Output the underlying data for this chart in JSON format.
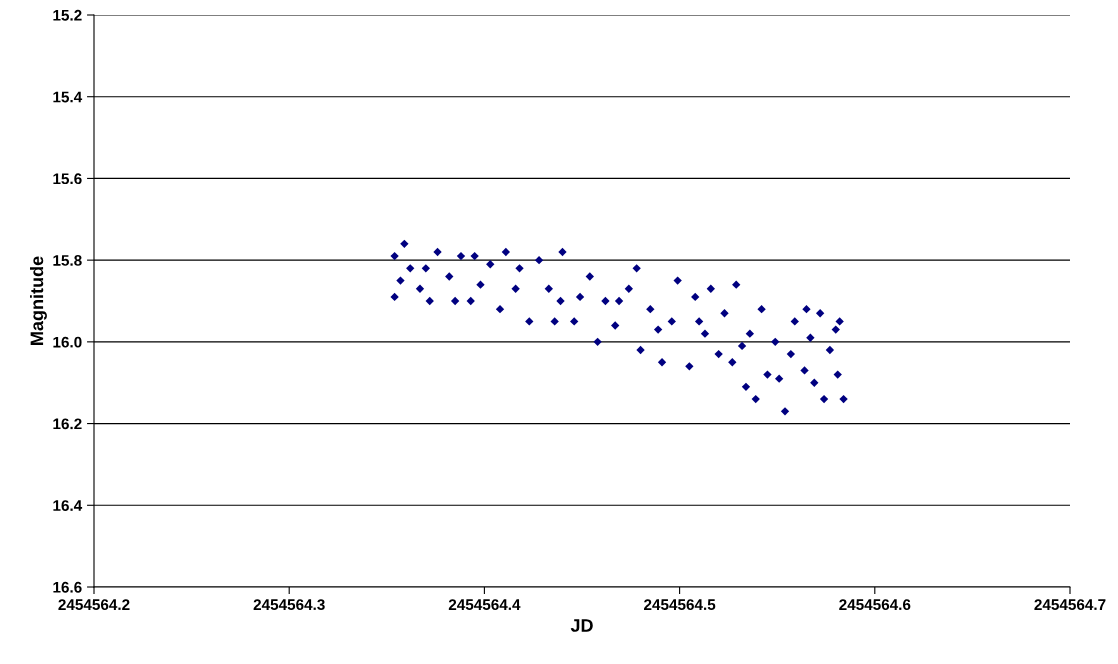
{
  "chart_data": {
    "type": "scatter",
    "xlabel": "JD",
    "ylabel": "Magnitude",
    "x": [
      2454564.354,
      2454564.354,
      2454564.359,
      2454564.362,
      2454564.367,
      2454564.376,
      2454564.372,
      2454564.382,
      2454564.388,
      2454564.393,
      2454564.398,
      2454564.403,
      2454564.411,
      2454564.408,
      2454564.416,
      2454564.423,
      2454564.428,
      2454564.433,
      2454564.439,
      2454564.44,
      2454564.446,
      2454564.454,
      2454564.458,
      2454564.462,
      2454564.467,
      2454564.474,
      2454564.478,
      2454564.48,
      2454564.485,
      2454564.491,
      2454564.496,
      2454564.499,
      2454564.505,
      2454564.508,
      2454564.513,
      2454564.516,
      2454564.52,
      2454564.523,
      2454564.527,
      2454564.529,
      2454564.534,
      2454564.536,
      2454564.539,
      2454564.542,
      2454564.545,
      2454564.549,
      2454564.554,
      2454564.557,
      2454564.559,
      2454564.564,
      2454564.565,
      2454564.569,
      2454564.572,
      2454564.574,
      2454564.577,
      2454564.58,
      2454564.582,
      2454564.584,
      2454564.581,
      2454564.357,
      2454564.37,
      2454564.385,
      2454564.395,
      2454564.418,
      2454564.436,
      2454564.449,
      2454564.469,
      2454564.489,
      2454564.51,
      2454564.532,
      2454564.551,
      2454564.567
    ],
    "values": [
      15.79,
      15.89,
      15.76,
      15.82,
      15.87,
      15.78,
      15.9,
      15.84,
      15.79,
      15.9,
      15.86,
      15.81,
      15.78,
      15.92,
      15.87,
      15.95,
      15.8,
      15.87,
      15.9,
      15.78,
      15.95,
      15.84,
      16.0,
      15.9,
      15.96,
      15.87,
      15.82,
      16.02,
      15.92,
      16.05,
      15.95,
      15.85,
      16.06,
      15.89,
      15.98,
      15.87,
      16.03,
      15.93,
      16.05,
      15.86,
      16.11,
      15.98,
      16.14,
      15.92,
      16.08,
      16.0,
      16.17,
      16.03,
      15.95,
      16.07,
      15.92,
      16.1,
      15.93,
      16.14,
      16.02,
      15.97,
      15.95,
      16.14,
      16.08,
      15.85,
      15.82,
      15.9,
      15.79,
      15.82,
      15.95,
      15.89,
      15.9,
      15.97,
      15.95,
      16.01,
      16.09,
      15.99
    ],
    "color": "#000080",
    "marker": "diamond",
    "xlim": [
      2454564.2,
      2454564.7
    ],
    "xticks": [
      2454564.2,
      2454564.3,
      2454564.4,
      2454564.5,
      2454564.6,
      2454564.7
    ],
    "ylim": [
      16.6,
      15.2
    ],
    "yticks": [
      {
        "value": 15.2,
        "label": "15.2"
      },
      {
        "value": 15.4,
        "label": "15.4"
      },
      {
        "value": 15.6,
        "label": "15.6"
      },
      {
        "value": 15.8,
        "label": "15.8"
      },
      {
        "value": 16.0,
        "label": "16.0"
      },
      {
        "value": 16.2,
        "label": "16.2"
      },
      {
        "value": 16.4,
        "label": "16.4"
      },
      {
        "value": 16.6,
        "label": "16.6"
      }
    ],
    "grid": "y",
    "legend": false
  }
}
